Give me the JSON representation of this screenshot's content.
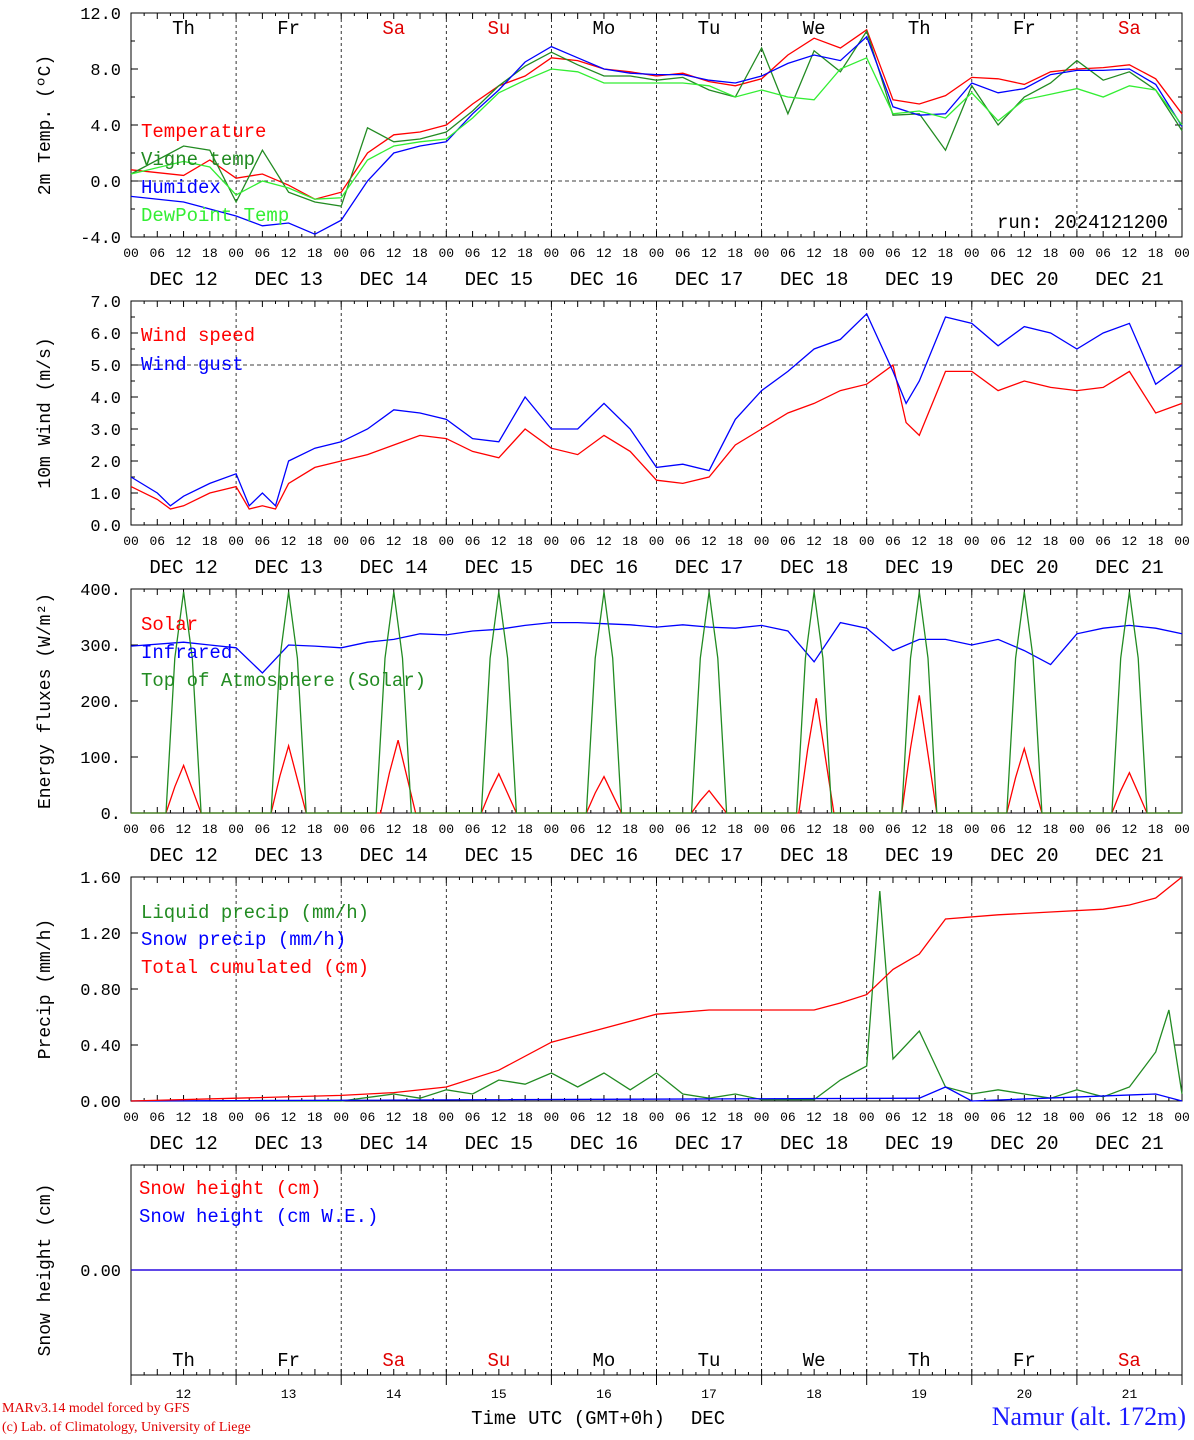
{
  "footer": {
    "model_credit": "MARv3.14 model forced by GFS",
    "lab_credit": "(c) Lab. of Climatology, University of Liege",
    "station": "Namur (alt. 172m)",
    "time_axis_label": "Time UTC (GMT+0h)",
    "month_label": "DEC"
  },
  "day_names": [
    "Th",
    "Fr",
    "Sa",
    "Su",
    "Mo",
    "Tu",
    "We",
    "Th",
    "Fr",
    "Sa"
  ],
  "weekend_color": "#e00000",
  "weekday_color": "#000000",
  "day_numbers": [
    "12",
    "13",
    "14",
    "15",
    "16",
    "17",
    "18",
    "19",
    "20",
    "21"
  ],
  "date_labels": [
    "DEC 12",
    "DEC 13",
    "DEC 14",
    "DEC 15",
    "DEC 16",
    "DEC 17",
    "DEC 18",
    "DEC 19",
    "DEC 20",
    "DEC 21"
  ],
  "hour_ticks": [
    "00",
    "06",
    "12",
    "18"
  ],
  "hour_end_tick": "00",
  "chart_data": [
    {
      "type": "line",
      "ylabel": "2m Temp. (ºC)",
      "ylim": [
        -4,
        12
      ],
      "yticks": [
        "-4.0",
        "0.0",
        "4.0",
        "8.0",
        "12.0"
      ],
      "ref_line": 0,
      "annotation": "run: 2024121200",
      "x_unit": "hours since DEC 12 00 UTC",
      "series": [
        {
          "name": "Temperature",
          "color": "#ff0000",
          "x": [
            0,
            12,
            18,
            24,
            30,
            36,
            42,
            48,
            54,
            60,
            66,
            72,
            78,
            84,
            90,
            96,
            102,
            108,
            114,
            120,
            126,
            132,
            138,
            144,
            150,
            156,
            162,
            168,
            174,
            180,
            186,
            192,
            198,
            204,
            210,
            216,
            222,
            228,
            234,
            240
          ],
          "values": [
            0.8,
            0.4,
            1.5,
            0.2,
            0.5,
            -0.3,
            -1.3,
            -0.8,
            2.0,
            3.3,
            3.5,
            4.0,
            5.5,
            6.8,
            7.5,
            8.8,
            8.6,
            8.0,
            7.8,
            7.5,
            7.7,
            7.1,
            6.8,
            7.3,
            9.0,
            10.2,
            9.5,
            10.8,
            5.8,
            5.5,
            6.1,
            7.4,
            7.3,
            6.9,
            7.8,
            8.0,
            8.1,
            8.3,
            7.3,
            4.8
          ]
        },
        {
          "name": "Vigne temp",
          "color": "#228b22",
          "x": [
            0,
            12,
            18,
            24,
            30,
            36,
            42,
            48,
            54,
            60,
            66,
            72,
            78,
            84,
            90,
            96,
            102,
            108,
            114,
            120,
            126,
            132,
            138,
            144,
            150,
            156,
            162,
            168,
            174,
            180,
            186,
            192,
            198,
            204,
            210,
            216,
            222,
            228,
            234,
            240
          ],
          "values": [
            0.5,
            2.5,
            2.2,
            -1.5,
            2.2,
            -0.8,
            -1.5,
            -1.8,
            3.8,
            2.8,
            3.0,
            3.5,
            5.0,
            6.8,
            8.2,
            9.2,
            8.3,
            7.5,
            7.5,
            7.2,
            7.4,
            6.5,
            6.0,
            9.5,
            4.8,
            9.3,
            7.8,
            10.7,
            4.7,
            4.8,
            2.2,
            6.8,
            4.0,
            6.0,
            7.0,
            8.6,
            7.2,
            7.8,
            6.5,
            3.6
          ]
        },
        {
          "name": "Humidex",
          "color": "#0000ff",
          "x": [
            0,
            12,
            18,
            24,
            30,
            36,
            42,
            48,
            54,
            60,
            66,
            72,
            78,
            84,
            90,
            96,
            102,
            108,
            114,
            120,
            126,
            132,
            138,
            144,
            150,
            156,
            162,
            168,
            174,
            180,
            186,
            192,
            198,
            204,
            210,
            216,
            222,
            228,
            234,
            240
          ],
          "values": [
            -1.1,
            -1.5,
            -2.0,
            -2.5,
            -3.2,
            -3.0,
            -3.8,
            -2.8,
            0.0,
            2.0,
            2.5,
            2.8,
            4.8,
            6.5,
            8.5,
            9.6,
            8.8,
            8.0,
            7.7,
            7.6,
            7.6,
            7.2,
            7.0,
            7.5,
            8.4,
            9.0,
            8.6,
            10.3,
            5.3,
            4.7,
            4.8,
            7.0,
            6.3,
            6.6,
            7.6,
            7.9,
            7.9,
            8.0,
            6.9,
            3.9
          ]
        },
        {
          "name": "DewPoint Temp",
          "color": "#33ee33",
          "x": [
            0,
            12,
            18,
            24,
            30,
            36,
            42,
            48,
            54,
            60,
            66,
            72,
            78,
            84,
            90,
            96,
            102,
            108,
            114,
            120,
            126,
            132,
            138,
            144,
            150,
            156,
            162,
            168,
            174,
            180,
            186,
            192,
            198,
            204,
            210,
            216,
            222,
            228,
            234,
            240
          ],
          "values": [
            0.5,
            1.4,
            1.0,
            -1.0,
            0.0,
            -0.5,
            -1.3,
            -1.2,
            1.5,
            2.5,
            2.8,
            3.0,
            4.5,
            6.3,
            7.2,
            8.0,
            7.8,
            7.0,
            7.0,
            7.0,
            7.0,
            6.8,
            6.0,
            6.5,
            6.0,
            5.8,
            8.0,
            8.8,
            4.8,
            5.0,
            4.5,
            6.3,
            4.3,
            5.8,
            6.2,
            6.6,
            6.0,
            6.8,
            6.5,
            4.0
          ]
        }
      ]
    },
    {
      "type": "line",
      "ylabel": "10m Wind (m/s)",
      "ylim": [
        0,
        7
      ],
      "yticks": [
        "0.0",
        "1.0",
        "2.0",
        "3.0",
        "4.0",
        "5.0",
        "6.0",
        "7.0"
      ],
      "ref_line": 5,
      "x_unit": "hours since DEC 12 00 UTC",
      "series": [
        {
          "name": "Wind speed",
          "color": "#ff0000",
          "x": [
            0,
            6,
            9,
            12,
            18,
            24,
            27,
            30,
            33,
            36,
            42,
            48,
            54,
            60,
            66,
            72,
            78,
            84,
            90,
            96,
            102,
            108,
            114,
            120,
            126,
            132,
            138,
            144,
            150,
            156,
            162,
            168,
            174,
            177,
            180,
            186,
            192,
            198,
            204,
            210,
            216,
            222,
            228,
            234,
            240
          ],
          "values": [
            1.2,
            0.8,
            0.5,
            0.6,
            1.0,
            1.2,
            0.5,
            0.6,
            0.5,
            1.3,
            1.8,
            2.0,
            2.2,
            2.5,
            2.8,
            2.7,
            2.3,
            2.1,
            3.0,
            2.4,
            2.2,
            2.8,
            2.3,
            1.4,
            1.3,
            1.5,
            2.5,
            3.0,
            3.5,
            3.8,
            4.2,
            4.4,
            5.0,
            3.2,
            2.8,
            4.8,
            4.8,
            4.2,
            4.5,
            4.3,
            4.2,
            4.3,
            4.8,
            3.5,
            3.8
          ]
        },
        {
          "name": "Wind gust",
          "color": "#0000ff",
          "x": [
            0,
            6,
            9,
            12,
            18,
            24,
            27,
            30,
            33,
            36,
            42,
            48,
            54,
            60,
            66,
            72,
            78,
            84,
            90,
            96,
            102,
            108,
            114,
            120,
            126,
            132,
            138,
            144,
            150,
            156,
            162,
            168,
            174,
            177,
            180,
            186,
            192,
            198,
            204,
            210,
            216,
            222,
            228,
            234,
            240
          ],
          "values": [
            1.5,
            1.0,
            0.6,
            0.9,
            1.3,
            1.6,
            0.6,
            1.0,
            0.6,
            2.0,
            2.4,
            2.6,
            3.0,
            3.6,
            3.5,
            3.3,
            2.7,
            2.6,
            4.0,
            3.0,
            3.0,
            3.8,
            3.0,
            1.8,
            1.9,
            1.7,
            3.3,
            4.2,
            4.8,
            5.5,
            5.8,
            6.6,
            4.8,
            3.8,
            4.5,
            6.5,
            6.3,
            5.6,
            6.2,
            6.0,
            5.5,
            6.0,
            6.3,
            4.4,
            5.0
          ]
        }
      ]
    },
    {
      "type": "line",
      "ylabel": "Energy fluxes (W/m²)",
      "ylim": [
        0,
        400
      ],
      "yticks": [
        "0.",
        "100.",
        "200.",
        "300.",
        "400."
      ],
      "x_unit": "hours since DEC 12 00 UTC",
      "series": [
        {
          "name": "Solar",
          "color": "#ff0000",
          "peaks": [
            85,
            120,
            130,
            70,
            65,
            40,
            205,
            210,
            115,
            72
          ],
          "peak_hours": [
            12,
            12,
            13,
            12,
            12,
            12,
            12.5,
            12,
            12,
            12
          ]
        },
        {
          "name": "Infrared",
          "color": "#0000ff",
          "x": [
            0,
            12,
            18,
            24,
            30,
            36,
            42,
            48,
            54,
            60,
            66,
            72,
            78,
            84,
            90,
            96,
            102,
            108,
            114,
            120,
            126,
            132,
            138,
            144,
            150,
            156,
            162,
            168,
            174,
            180,
            186,
            192,
            198,
            204,
            210,
            216,
            222,
            228,
            234,
            240
          ],
          "values": [
            298,
            305,
            300,
            295,
            250,
            300,
            298,
            295,
            305,
            310,
            320,
            318,
            325,
            328,
            335,
            340,
            340,
            338,
            336,
            332,
            336,
            332,
            330,
            335,
            325,
            270,
            340,
            330,
            290,
            310,
            310,
            300,
            310,
            290,
            265,
            320,
            330,
            335,
            330,
            320
          ]
        },
        {
          "name": "Top of Atmosphere (Solar)",
          "color": "#228b22",
          "peak": 395,
          "day_start_hour": 8,
          "day_end_hour": 16
        }
      ]
    },
    {
      "type": "line",
      "ylabel": "Precip (mm/h)",
      "ylim": [
        0,
        1.6
      ],
      "yticks": [
        "0.00",
        "0.40",
        "0.80",
        "1.20",
        "1.60"
      ],
      "x_unit": "hours since DEC 12 00 UTC",
      "series": [
        {
          "name": "Liquid precip (mm/h)",
          "color": "#228b22",
          "x": [
            0,
            48,
            60,
            66,
            72,
            78,
            84,
            90,
            96,
            102,
            108,
            114,
            120,
            126,
            132,
            138,
            144,
            156,
            162,
            168,
            171,
            174,
            180,
            186,
            192,
            198,
            204,
            210,
            216,
            222,
            228,
            234,
            237,
            240
          ],
          "values": [
            0,
            0,
            0.05,
            0.02,
            0.08,
            0.05,
            0.15,
            0.12,
            0.2,
            0.1,
            0.2,
            0.08,
            0.2,
            0.05,
            0.02,
            0.05,
            0.01,
            0.01,
            0.15,
            0.25,
            1.5,
            0.3,
            0.5,
            0.1,
            0.05,
            0.08,
            0.05,
            0.02,
            0.08,
            0.03,
            0.1,
            0.35,
            0.65,
            0.05
          ]
        },
        {
          "name": "Snow precip (mm/h)",
          "color": "#0000ff",
          "x": [
            0,
            180,
            186,
            192,
            234,
            240
          ],
          "values": [
            0,
            0.02,
            0.1,
            0,
            0.05,
            0
          ]
        },
        {
          "name": "Total cumulated (cm)",
          "color": "#ff0000",
          "x": [
            0,
            24,
            48,
            60,
            72,
            84,
            96,
            108,
            120,
            132,
            144,
            156,
            162,
            168,
            174,
            180,
            186,
            198,
            210,
            222,
            228,
            234,
            240
          ],
          "values": [
            0,
            0.02,
            0.04,
            0.06,
            0.1,
            0.22,
            0.42,
            0.52,
            0.62,
            0.65,
            0.65,
            0.65,
            0.7,
            0.76,
            0.94,
            1.05,
            1.3,
            1.33,
            1.35,
            1.37,
            1.4,
            1.45,
            1.6
          ]
        }
      ]
    },
    {
      "type": "line",
      "ylabel": "Snow height (cm)",
      "ylim": [
        -1,
        1
      ],
      "yticks": [
        "0.00"
      ],
      "x_unit": "hours since DEC 12 00 UTC",
      "series": [
        {
          "name": "Snow height (cm)",
          "color": "#ff0000",
          "x": [
            0,
            240
          ],
          "values": [
            0,
            0
          ]
        },
        {
          "name": "Snow height (cm W.E.)",
          "color": "#0000ff",
          "x": [
            0,
            240
          ],
          "values": [
            0,
            0
          ]
        }
      ]
    }
  ]
}
